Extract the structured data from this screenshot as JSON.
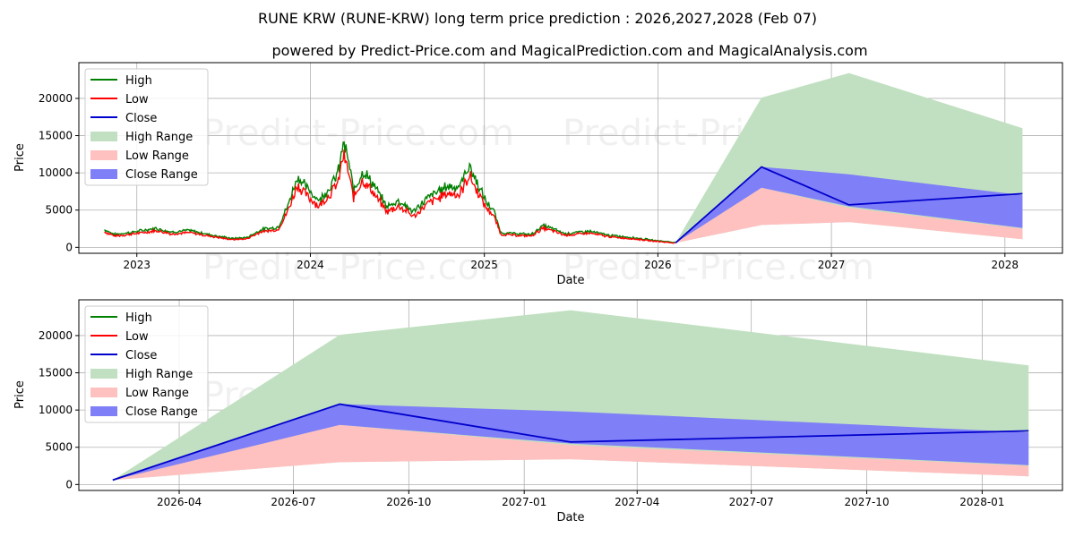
{
  "title": "RUNE KRW (RUNE-KRW) long term price prediction : 2026,2027,2028 (Feb 07)",
  "subtitle": "powered by Predict-Price.com and MagicalPrediction.com and MagicalAnalysis.com",
  "watermark": "Predict-Price.com",
  "colors": {
    "high": "#008000",
    "low": "#ff0000",
    "close": "#0000cc",
    "high_range": "#c1e0c1",
    "low_range": "#ffc0c0",
    "close_range": "#7f7ff7"
  },
  "chart_data": [
    {
      "type": "line",
      "xlabel": "Date",
      "ylabel": "Price",
      "xlim": [
        "2022-09-01",
        "2028-05-01"
      ],
      "ylim": [
        -800,
        24800
      ],
      "yticks": [
        0,
        5000,
        10000,
        15000,
        20000
      ],
      "ytick_labels": [
        "0",
        "5000",
        "10000",
        "15000",
        "20000"
      ],
      "xticks": [
        "2023-01-01",
        "2024-01-01",
        "2025-01-01",
        "2026-01-01",
        "2027-01-01",
        "2028-01-01"
      ],
      "xtick_labels": [
        "2023",
        "2024",
        "2025",
        "2026",
        "2027",
        "2028"
      ],
      "legend": [
        "High",
        "Low",
        "Close",
        "High Range",
        "Low Range",
        "Close Range"
      ],
      "legend_position": "upper-left",
      "history_anchors": [
        [
          "2022-10-25",
          2200
        ],
        [
          "2022-11-15",
          1600
        ],
        [
          "2022-12-20",
          1850
        ],
        [
          "2023-02-10",
          2350
        ],
        [
          "2023-03-15",
          1900
        ],
        [
          "2023-04-20",
          2100
        ],
        [
          "2023-06-10",
          1500
        ],
        [
          "2023-07-20",
          1100
        ],
        [
          "2023-08-20",
          1200
        ],
        [
          "2023-09-20",
          2200
        ],
        [
          "2023-10-25",
          2500
        ],
        [
          "2023-11-15",
          5200
        ],
        [
          "2023-12-05",
          8800
        ],
        [
          "2023-12-25",
          7300
        ],
        [
          "2024-01-20",
          5800
        ],
        [
          "2024-02-15",
          7800
        ],
        [
          "2024-03-01",
          9500
        ],
        [
          "2024-03-10",
          13000
        ],
        [
          "2024-03-20",
          11000
        ],
        [
          "2024-04-01",
          7000
        ],
        [
          "2024-04-20",
          9500
        ],
        [
          "2024-05-10",
          8000
        ],
        [
          "2024-06-10",
          5000
        ],
        [
          "2024-07-05",
          5800
        ],
        [
          "2024-08-05",
          4400
        ],
        [
          "2024-09-05",
          6200
        ],
        [
          "2024-10-15",
          7600
        ],
        [
          "2024-11-10",
          7500
        ],
        [
          "2024-11-30",
          10200
        ],
        [
          "2024-12-15",
          8200
        ],
        [
          "2025-01-05",
          5600
        ],
        [
          "2025-01-20",
          4600
        ],
        [
          "2025-02-05",
          1800
        ],
        [
          "2025-03-10",
          1700
        ],
        [
          "2025-04-10",
          1600
        ],
        [
          "2025-05-05",
          2700
        ],
        [
          "2025-05-25",
          2300
        ],
        [
          "2025-06-20",
          1700
        ],
        [
          "2025-08-10",
          2000
        ],
        [
          "2025-09-20",
          1500
        ],
        [
          "2025-11-10",
          1200
        ],
        [
          "2025-12-20",
          900
        ],
        [
          "2026-02-07",
          600
        ]
      ],
      "forecast": {
        "dates": [
          "2026-02-07",
          "2026-08-07",
          "2027-02-07",
          "2028-02-07"
        ],
        "close": [
          600,
          10800,
          5700,
          7200
        ],
        "high_range_top": [
          600,
          20100,
          23400,
          16000
        ],
        "close_range_top": [
          600,
          10800,
          9800,
          7000
        ],
        "close_range_bottom": [
          600,
          8000,
          5500,
          2600
        ],
        "low_range_top": [
          600,
          8000,
          5300,
          2500
        ],
        "low_range_bottom": [
          600,
          3000,
          3400,
          1100
        ]
      }
    },
    {
      "type": "area",
      "xlabel": "Date",
      "ylabel": "Price",
      "xlim": [
        "2026-01-11",
        "2028-03-05"
      ],
      "ylim": [
        -800,
        24800
      ],
      "yticks": [
        0,
        5000,
        10000,
        15000,
        20000
      ],
      "ytick_labels": [
        "0",
        "5000",
        "10000",
        "15000",
        "20000"
      ],
      "xticks": [
        "2026-04-01",
        "2026-07-01",
        "2026-10-01",
        "2027-01-01",
        "2027-04-01",
        "2027-07-01",
        "2027-10-01",
        "2028-01-01"
      ],
      "xtick_labels": [
        "2026-04",
        "2026-07",
        "2026-10",
        "2027-01",
        "2027-04",
        "2027-07",
        "2027-10",
        "2028-01"
      ],
      "legend": [
        "High",
        "Low",
        "Close",
        "High Range",
        "Low Range",
        "Close Range"
      ],
      "legend_position": "upper-left",
      "forecast": {
        "dates": [
          "2026-02-07",
          "2026-08-07",
          "2027-02-07",
          "2028-02-07"
        ],
        "close": [
          600,
          10800,
          5700,
          7200
        ],
        "high_range_top": [
          600,
          20100,
          23400,
          16000
        ],
        "close_range_top": [
          600,
          10800,
          9800,
          7000
        ],
        "close_range_bottom": [
          600,
          8000,
          5500,
          2600
        ],
        "low_range_top": [
          600,
          8000,
          5300,
          2500
        ],
        "low_range_bottom": [
          600,
          3000,
          3400,
          1100
        ]
      }
    }
  ]
}
